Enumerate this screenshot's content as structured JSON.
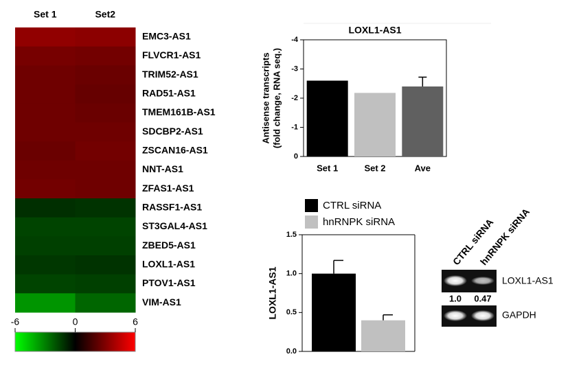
{
  "chart_data": [
    {
      "type": "heatmap",
      "columns": [
        "Set 1",
        "Set2"
      ],
      "rows": [
        "EMC3-AS1",
        "FLVCR1-AS1",
        "TRIM52-AS1",
        "RAD51-AS1",
        "TMEM161B-AS1",
        "SDCBP2-AS1",
        "ZSCAN16-AS1",
        "NNT-AS1",
        "ZFAS1-AS1",
        "RASSF1-AS1",
        "ST3GAL4-AS1",
        "ZBED5-AS1",
        "LOXL1-AS1",
        "PTOV1-AS1",
        "VIM-AS1"
      ],
      "values": [
        [
          3.4,
          3.3
        ],
        [
          2.8,
          2.7
        ],
        [
          2.6,
          2.5
        ],
        [
          2.6,
          2.4
        ],
        [
          2.6,
          2.5
        ],
        [
          2.6,
          2.6
        ],
        [
          2.5,
          2.7
        ],
        [
          2.6,
          2.6
        ],
        [
          2.7,
          2.6
        ],
        [
          -1.1,
          -1.2
        ],
        [
          -1.6,
          -1.6
        ],
        [
          -1.5,
          -1.5
        ],
        [
          -1.3,
          -1.2
        ],
        [
          -1.6,
          -1.5
        ],
        [
          -3.5,
          -2.4
        ]
      ],
      "zlim": [
        -6,
        6
      ],
      "zticks": [
        -6,
        0,
        6
      ],
      "colors": [
        "#00ff00",
        "#000000",
        "#ff0000"
      ],
      "highlight": {
        "row": 12,
        "color": "#2f8ac4"
      }
    },
    {
      "type": "bar",
      "title": "LOXL1-AS1",
      "ylabel": [
        "Antisense transcripts",
        "(fold change, RNA seq.)"
      ],
      "categories": [
        "Set 1",
        "Set 2",
        "Ave"
      ],
      "values": [
        -2.6,
        -2.18,
        -2.4
      ],
      "errors": [
        null,
        null,
        0.32
      ],
      "colors": [
        "#000000",
        "#c0c0c0",
        "#606060"
      ],
      "ylim": [
        0,
        -4
      ],
      "yticks": [
        0,
        -1,
        -2,
        -3,
        -4
      ]
    },
    {
      "type": "grouped_bar",
      "ylabel": "LOXL1-AS1",
      "categories": [
        null
      ],
      "series": [
        {
          "name": "CTRL siRNA",
          "color": "#000000",
          "values": [
            1.0
          ],
          "errors": [
            0.17
          ]
        },
        {
          "name": "hnRNPK siRNA",
          "color": "#c0c0c0",
          "values": [
            0.4
          ],
          "errors": [
            0.07
          ]
        }
      ],
      "ylim": [
        0,
        1.5
      ],
      "yticks": [
        {
          "value": 0,
          "label": "0.0"
        },
        {
          "value": 0.5,
          "label": "0.5"
        },
        {
          "value": 1,
          "label": "1.0"
        },
        {
          "value": 1.5,
          "label": "1.5"
        }
      ],
      "legend": "top-left"
    }
  ],
  "gel": {
    "lanes": [
      "CTRL siRNA",
      "hnRNPK siRNA"
    ],
    "bands": [
      "LOXL1-AS1",
      "GAPDH"
    ],
    "quantification": [
      {
        "value": 1,
        "label": "1.0"
      },
      {
        "value": 0.47,
        "label": "0.47"
      }
    ]
  }
}
